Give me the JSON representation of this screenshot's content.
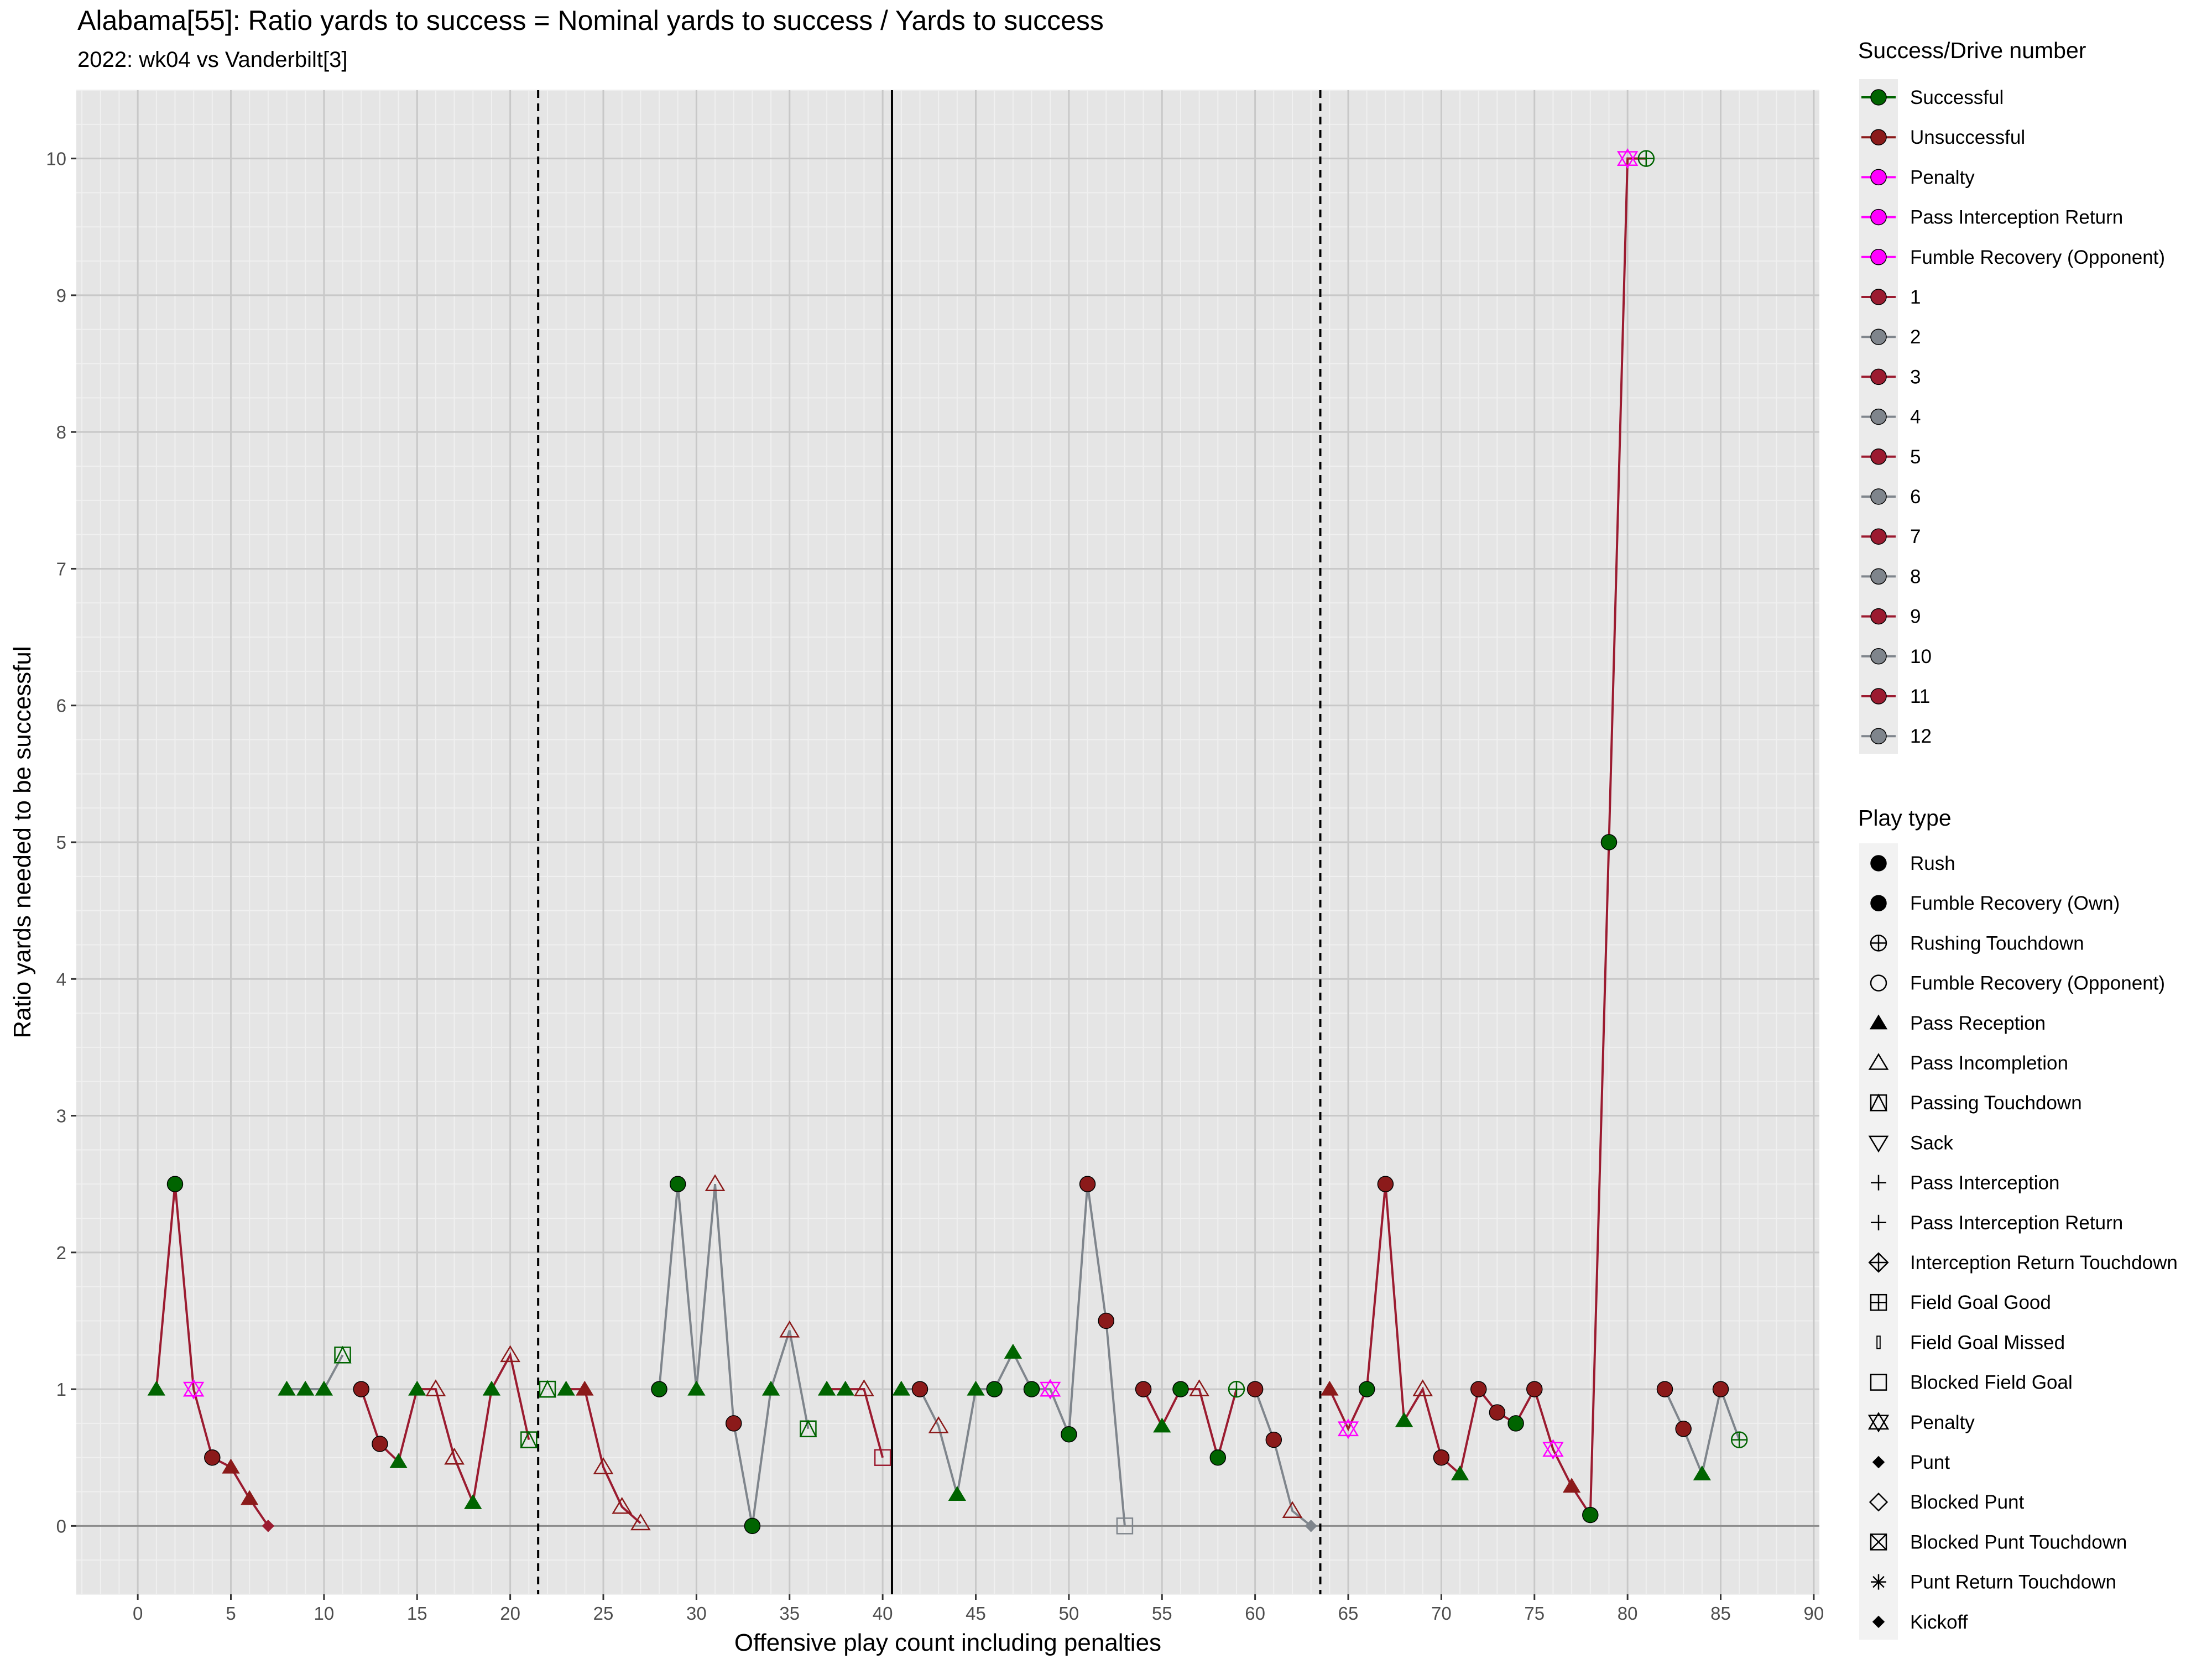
{
  "title": "Alabama[55]: Ratio yards to success = Nominal yards to success / Yards to success",
  "subtitle": "2022: wk04 vs Vanderbilt[3]",
  "colors": {
    "successful": "#006400",
    "unsuccessful": "#8B1A1A",
    "penalty": "#FF00FF",
    "drive_odd": "#9B1B30",
    "drive_even": "#7F858C",
    "panel": "#E5E5E5",
    "grid_major": "#C8C8C8",
    "grid_minor": "#F0F0F0"
  },
  "legend_success": {
    "title": "Success/Drive number",
    "items": [
      "Successful",
      "Unsuccessful",
      "Penalty",
      "Pass Interception Return",
      "Fumble Recovery (Opponent)",
      "1",
      "2",
      "3",
      "4",
      "5",
      "6",
      "7",
      "8",
      "9",
      "10",
      "11",
      "12"
    ]
  },
  "legend_play": {
    "title": "Play type",
    "items": [
      {
        "label": "Rush",
        "shape": "filled-circle"
      },
      {
        "label": "Fumble Recovery (Own)",
        "shape": "filled-circle"
      },
      {
        "label": "Rushing Touchdown",
        "shape": "circle-plus"
      },
      {
        "label": "Fumble Recovery (Opponent)",
        "shape": "open-circle"
      },
      {
        "label": "Pass Reception",
        "shape": "filled-triangle"
      },
      {
        "label": "Pass Incompletion",
        "shape": "open-triangle"
      },
      {
        "label": "Passing Touchdown",
        "shape": "square-triangle"
      },
      {
        "label": "Sack",
        "shape": "open-triangle-down"
      },
      {
        "label": "Pass Interception",
        "shape": "plus"
      },
      {
        "label": "Pass Interception Return",
        "shape": "plus"
      },
      {
        "label": "Interception Return Touchdown",
        "shape": "diamond-plus"
      },
      {
        "label": "Field Goal Good",
        "shape": "square-plus"
      },
      {
        "label": "Field Goal Missed",
        "shape": "thin-bar"
      },
      {
        "label": "Blocked Field Goal",
        "shape": "open-square"
      },
      {
        "label": "Penalty",
        "shape": "star-of-david"
      },
      {
        "label": "Punt",
        "shape": "filled-diamond"
      },
      {
        "label": "Blocked Punt",
        "shape": "open-diamond"
      },
      {
        "label": "Blocked Punt Touchdown",
        "shape": "square-x"
      },
      {
        "label": "Punt Return Touchdown",
        "shape": "asterisk"
      },
      {
        "label": "Kickoff",
        "shape": "filled-diamond"
      }
    ]
  },
  "chart_data": {
    "type": "scatter",
    "title": "Alabama[55]: Ratio yards to success = Nominal yards to success / Yards to success",
    "subtitle": "2022: wk04 vs Vanderbilt[3]",
    "xlabel": "Offensive play count including penalties",
    "ylabel": "Ratio yards needed to be successful",
    "xlim": [
      -3.3,
      90.3
    ],
    "ylim": [
      -0.5,
      10.5
    ],
    "xticks": [
      "0",
      "5",
      "10",
      "15",
      "20",
      "25",
      "30",
      "35",
      "40",
      "45",
      "50",
      "55",
      "60",
      "65",
      "70",
      "75",
      "80",
      "85",
      "90"
    ],
    "yticks": [
      "0",
      "1",
      "2",
      "3",
      "4",
      "5",
      "6",
      "7",
      "8",
      "9",
      "10"
    ],
    "grid": true,
    "legend_position": "right",
    "vlines_dashed": [
      21.5,
      63.5
    ],
    "vlines_solid": [
      40.5
    ],
    "hline": 0,
    "drives": [
      {
        "drive": 1,
        "points": [
          {
            "x": 1,
            "y": 1,
            "shape": "filled-triangle",
            "status": "successful"
          },
          {
            "x": 2,
            "y": 2.5,
            "shape": "filled-circle",
            "status": "successful"
          },
          {
            "x": 3,
            "y": 1,
            "shape": "star-of-david",
            "status": "penalty"
          },
          {
            "x": 4,
            "y": 0.5,
            "shape": "filled-circle",
            "status": "unsuccessful"
          },
          {
            "x": 5,
            "y": 0.43,
            "shape": "filled-triangle",
            "status": "unsuccessful"
          },
          {
            "x": 6,
            "y": 0.2,
            "shape": "filled-triangle",
            "status": "unsuccessful"
          },
          {
            "x": 7,
            "y": 0,
            "shape": "filled-diamond",
            "status": "drive"
          }
        ]
      },
      {
        "drive": 2,
        "points": [
          {
            "x": 8,
            "y": 1,
            "shape": "filled-triangle",
            "status": "successful"
          },
          {
            "x": 9,
            "y": 1,
            "shape": "filled-triangle",
            "status": "successful"
          },
          {
            "x": 10,
            "y": 1,
            "shape": "filled-triangle",
            "status": "successful"
          },
          {
            "x": 11,
            "y": 1.25,
            "shape": "square-triangle",
            "status": "successful"
          }
        ]
      },
      {
        "drive": 3,
        "points": [
          {
            "x": 12,
            "y": 1,
            "shape": "filled-circle",
            "status": "unsuccessful"
          },
          {
            "x": 13,
            "y": 0.6,
            "shape": "filled-circle",
            "status": "unsuccessful"
          },
          {
            "x": 14,
            "y": 0.47,
            "shape": "filled-triangle",
            "status": "successful"
          },
          {
            "x": 15,
            "y": 1,
            "shape": "filled-triangle",
            "status": "successful"
          },
          {
            "x": 16,
            "y": 1,
            "shape": "open-triangle",
            "status": "unsuccessful"
          },
          {
            "x": 17,
            "y": 0.5,
            "shape": "open-triangle",
            "status": "unsuccessful"
          },
          {
            "x": 18,
            "y": 0.17,
            "shape": "filled-triangle",
            "status": "successful"
          },
          {
            "x": 19,
            "y": 1,
            "shape": "filled-triangle",
            "status": "successful"
          },
          {
            "x": 20,
            "y": 1.25,
            "shape": "open-triangle",
            "status": "unsuccessful"
          },
          {
            "x": 21,
            "y": 0.63,
            "shape": "square-triangle",
            "status": "successful"
          }
        ]
      },
      {
        "drive": 4,
        "points": [
          {
            "x": 22,
            "y": 1,
            "shape": "square-triangle",
            "status": "successful"
          }
        ]
      },
      {
        "drive": 5,
        "points": [
          {
            "x": 23,
            "y": 1,
            "shape": "filled-triangle",
            "status": "successful"
          },
          {
            "x": 24,
            "y": 1,
            "shape": "filled-triangle",
            "status": "unsuccessful"
          },
          {
            "x": 25,
            "y": 0.43,
            "shape": "open-triangle",
            "status": "unsuccessful"
          },
          {
            "x": 26,
            "y": 0.14,
            "shape": "open-triangle",
            "status": "unsuccessful"
          },
          {
            "x": 27,
            "y": 0.02,
            "shape": "open-triangle",
            "status": "unsuccessful"
          }
        ]
      },
      {
        "drive": 6,
        "points": [
          {
            "x": 28,
            "y": 1,
            "shape": "filled-circle",
            "status": "successful"
          },
          {
            "x": 29,
            "y": 2.5,
            "shape": "filled-circle",
            "status": "successful"
          },
          {
            "x": 30,
            "y": 1,
            "shape": "filled-triangle",
            "status": "successful"
          },
          {
            "x": 31,
            "y": 2.5,
            "shape": "open-triangle",
            "status": "unsuccessful"
          },
          {
            "x": 32,
            "y": 0.75,
            "shape": "filled-circle",
            "status": "unsuccessful"
          },
          {
            "x": 33,
            "y": 0,
            "shape": "filled-circle",
            "status": "successful"
          },
          {
            "x": 34,
            "y": 1,
            "shape": "filled-triangle",
            "status": "successful"
          },
          {
            "x": 35,
            "y": 1.43,
            "shape": "open-triangle",
            "status": "unsuccessful"
          },
          {
            "x": 36,
            "y": 0.71,
            "shape": "square-triangle",
            "status": "successful"
          }
        ]
      },
      {
        "drive": 7,
        "points": [
          {
            "x": 37,
            "y": 1,
            "shape": "filled-triangle",
            "status": "successful"
          },
          {
            "x": 38,
            "y": 1,
            "shape": "filled-triangle",
            "status": "successful"
          },
          {
            "x": 39,
            "y": 1,
            "shape": "open-triangle",
            "status": "unsuccessful"
          },
          {
            "x": 40,
            "y": 0.5,
            "shape": "open-square",
            "status": "drive"
          }
        ]
      },
      {
        "drive": 8,
        "points": [
          {
            "x": 41,
            "y": 1,
            "shape": "filled-triangle",
            "status": "successful"
          },
          {
            "x": 42,
            "y": 1,
            "shape": "filled-circle",
            "status": "unsuccessful"
          },
          {
            "x": 43,
            "y": 0.73,
            "shape": "open-triangle",
            "status": "unsuccessful"
          },
          {
            "x": 44,
            "y": 0.23,
            "shape": "filled-triangle",
            "status": "successful"
          },
          {
            "x": 45,
            "y": 1,
            "shape": "filled-triangle",
            "status": "successful"
          },
          {
            "x": 46,
            "y": 1,
            "shape": "filled-circle",
            "status": "successful"
          },
          {
            "x": 47,
            "y": 1.27,
            "shape": "filled-triangle",
            "status": "successful"
          },
          {
            "x": 48,
            "y": 1,
            "shape": "filled-circle",
            "status": "successful"
          },
          {
            "x": 49,
            "y": 1,
            "shape": "star-of-david",
            "status": "penalty"
          },
          {
            "x": 50,
            "y": 0.67,
            "shape": "filled-circle",
            "status": "successful"
          },
          {
            "x": 51,
            "y": 2.5,
            "shape": "filled-circle",
            "status": "unsuccessful"
          },
          {
            "x": 52,
            "y": 1.5,
            "shape": "filled-circle",
            "status": "unsuccessful"
          },
          {
            "x": 53,
            "y": 0,
            "shape": "open-square",
            "status": "drive"
          }
        ]
      },
      {
        "drive": 9,
        "points": [
          {
            "x": 54,
            "y": 1,
            "shape": "filled-circle",
            "status": "unsuccessful"
          },
          {
            "x": 55,
            "y": 0.73,
            "shape": "filled-triangle",
            "status": "successful"
          },
          {
            "x": 56,
            "y": 1,
            "shape": "filled-circle",
            "status": "successful"
          },
          {
            "x": 57,
            "y": 1,
            "shape": "open-triangle",
            "status": "unsuccessful"
          },
          {
            "x": 58,
            "y": 0.5,
            "shape": "filled-circle",
            "status": "successful"
          },
          {
            "x": 59,
            "y": 1,
            "shape": "circle-plus",
            "status": "successful"
          }
        ]
      },
      {
        "drive": 10,
        "points": [
          {
            "x": 60,
            "y": 1,
            "shape": "filled-circle",
            "status": "unsuccessful"
          },
          {
            "x": 61,
            "y": 0.63,
            "shape": "filled-circle",
            "status": "unsuccessful"
          },
          {
            "x": 62,
            "y": 0.11,
            "shape": "open-triangle",
            "status": "unsuccessful"
          },
          {
            "x": 63,
            "y": 0,
            "shape": "filled-diamond",
            "status": "drive"
          }
        ]
      },
      {
        "drive": 11,
        "points": [
          {
            "x": 64,
            "y": 1,
            "shape": "filled-triangle",
            "status": "unsuccessful"
          },
          {
            "x": 65,
            "y": 0.71,
            "shape": "star-of-david",
            "status": "penalty"
          },
          {
            "x": 66,
            "y": 1,
            "shape": "filled-circle",
            "status": "successful"
          },
          {
            "x": 67,
            "y": 2.5,
            "shape": "filled-circle",
            "status": "unsuccessful"
          },
          {
            "x": 68,
            "y": 0.77,
            "shape": "filled-triangle",
            "status": "successful"
          },
          {
            "x": 69,
            "y": 1,
            "shape": "open-triangle",
            "status": "unsuccessful"
          },
          {
            "x": 70,
            "y": 0.5,
            "shape": "filled-circle",
            "status": "unsuccessful"
          },
          {
            "x": 71,
            "y": 0.38,
            "shape": "filled-triangle",
            "status": "successful"
          },
          {
            "x": 72,
            "y": 1,
            "shape": "filled-circle",
            "status": "unsuccessful"
          },
          {
            "x": 73,
            "y": 0.83,
            "shape": "filled-circle",
            "status": "unsuccessful"
          },
          {
            "x": 74,
            "y": 0.75,
            "shape": "filled-circle",
            "status": "successful"
          },
          {
            "x": 75,
            "y": 1,
            "shape": "filled-circle",
            "status": "unsuccessful"
          },
          {
            "x": 76,
            "y": 0.56,
            "shape": "star-of-david",
            "status": "penalty"
          },
          {
            "x": 77,
            "y": 0.29,
            "shape": "filled-triangle",
            "status": "unsuccessful"
          },
          {
            "x": 78,
            "y": 0.08,
            "shape": "filled-circle",
            "status": "successful"
          },
          {
            "x": 79,
            "y": 5,
            "shape": "filled-circle",
            "status": "successful"
          },
          {
            "x": 80,
            "y": 10,
            "shape": "star-of-david",
            "status": "penalty"
          },
          {
            "x": 81,
            "y": 10,
            "shape": "circle-plus",
            "status": "successful"
          }
        ]
      },
      {
        "drive": 12,
        "points": [
          {
            "x": 82,
            "y": 1,
            "shape": "filled-circle",
            "status": "unsuccessful"
          },
          {
            "x": 83,
            "y": 0.71,
            "shape": "filled-circle",
            "status": "unsuccessful"
          },
          {
            "x": 84,
            "y": 0.38,
            "shape": "filled-triangle",
            "status": "successful"
          },
          {
            "x": 85,
            "y": 1,
            "shape": "filled-circle",
            "status": "unsuccessful"
          },
          {
            "x": 86,
            "y": 0.63,
            "shape": "circle-plus",
            "status": "successful"
          }
        ]
      }
    ]
  }
}
